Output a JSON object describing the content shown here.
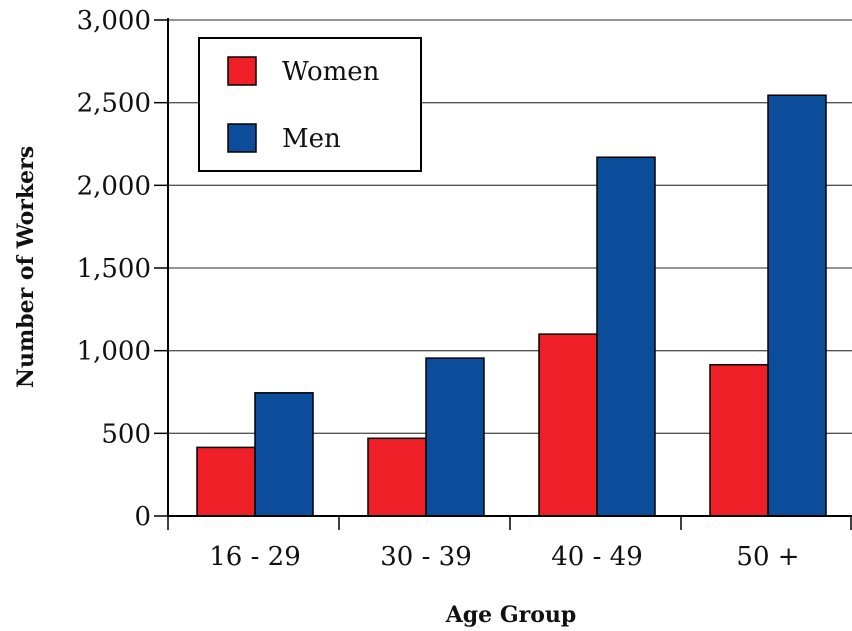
{
  "chart_data": {
    "type": "bar",
    "categories": [
      "16 - 29",
      "30 - 39",
      "40 - 49",
      "50 +"
    ],
    "series": [
      {
        "name": "Women",
        "values": [
          415,
          470,
          1100,
          915
        ],
        "color": "#ee1f26"
      },
      {
        "name": "Men",
        "values": [
          745,
          955,
          2170,
          2545
        ],
        "color": "#0b4d9a"
      }
    ],
    "xlabel": "Age Group",
    "ylabel": "Number of Workers",
    "ylim": [
      0,
      3000
    ],
    "yticks": [
      0,
      500,
      1000,
      1500,
      2000,
      2500,
      3000
    ],
    "ytick_labels": [
      "0",
      "500",
      "1,000",
      "1,500",
      "2,000",
      "2,500",
      "3,000"
    ],
    "grid": true,
    "legend_position": "top-left"
  }
}
